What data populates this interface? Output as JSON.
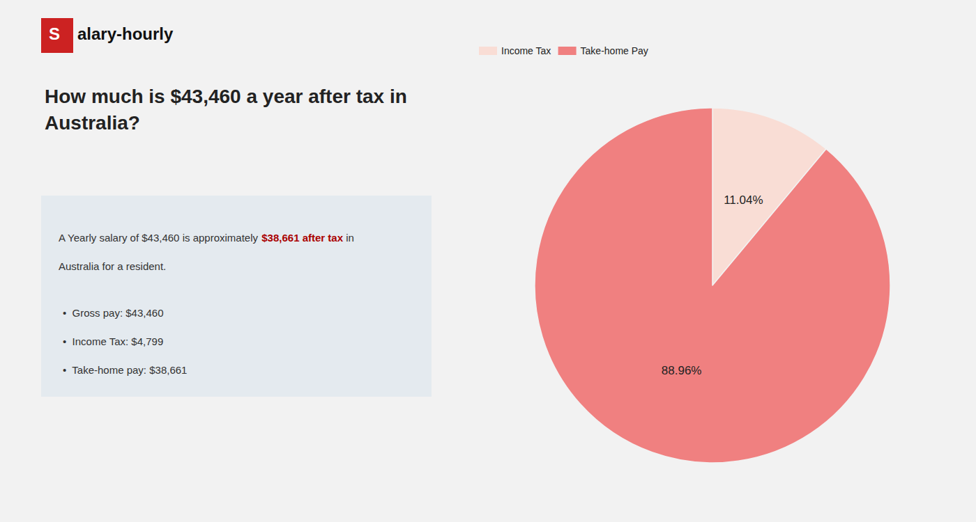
{
  "chart_data": {
    "type": "pie",
    "title": "How much is $43,460 a year after tax in\nAustralia?",
    "categories": [
      "Income Tax",
      "Take-home Pay"
    ],
    "values": [
      11.04,
      88.96
    ],
    "value_labels": [
      "11.04%",
      "88.96%"
    ],
    "colors": [
      "#f9ddd5",
      "#f08080"
    ],
    "data_labels": true,
    "legend": "upper left",
    "annotations": [
      "S",
      "alary-hourly",
      "A Yearly salary of $43,460 is approximately ",
      "$38,661 after tax",
      " in",
      "Australia for a resident.",
      "•  Gross pay: $43,460",
      "•  Income Tax: $4,799",
      "•  Take-home pay: $38,661"
    ]
  }
}
